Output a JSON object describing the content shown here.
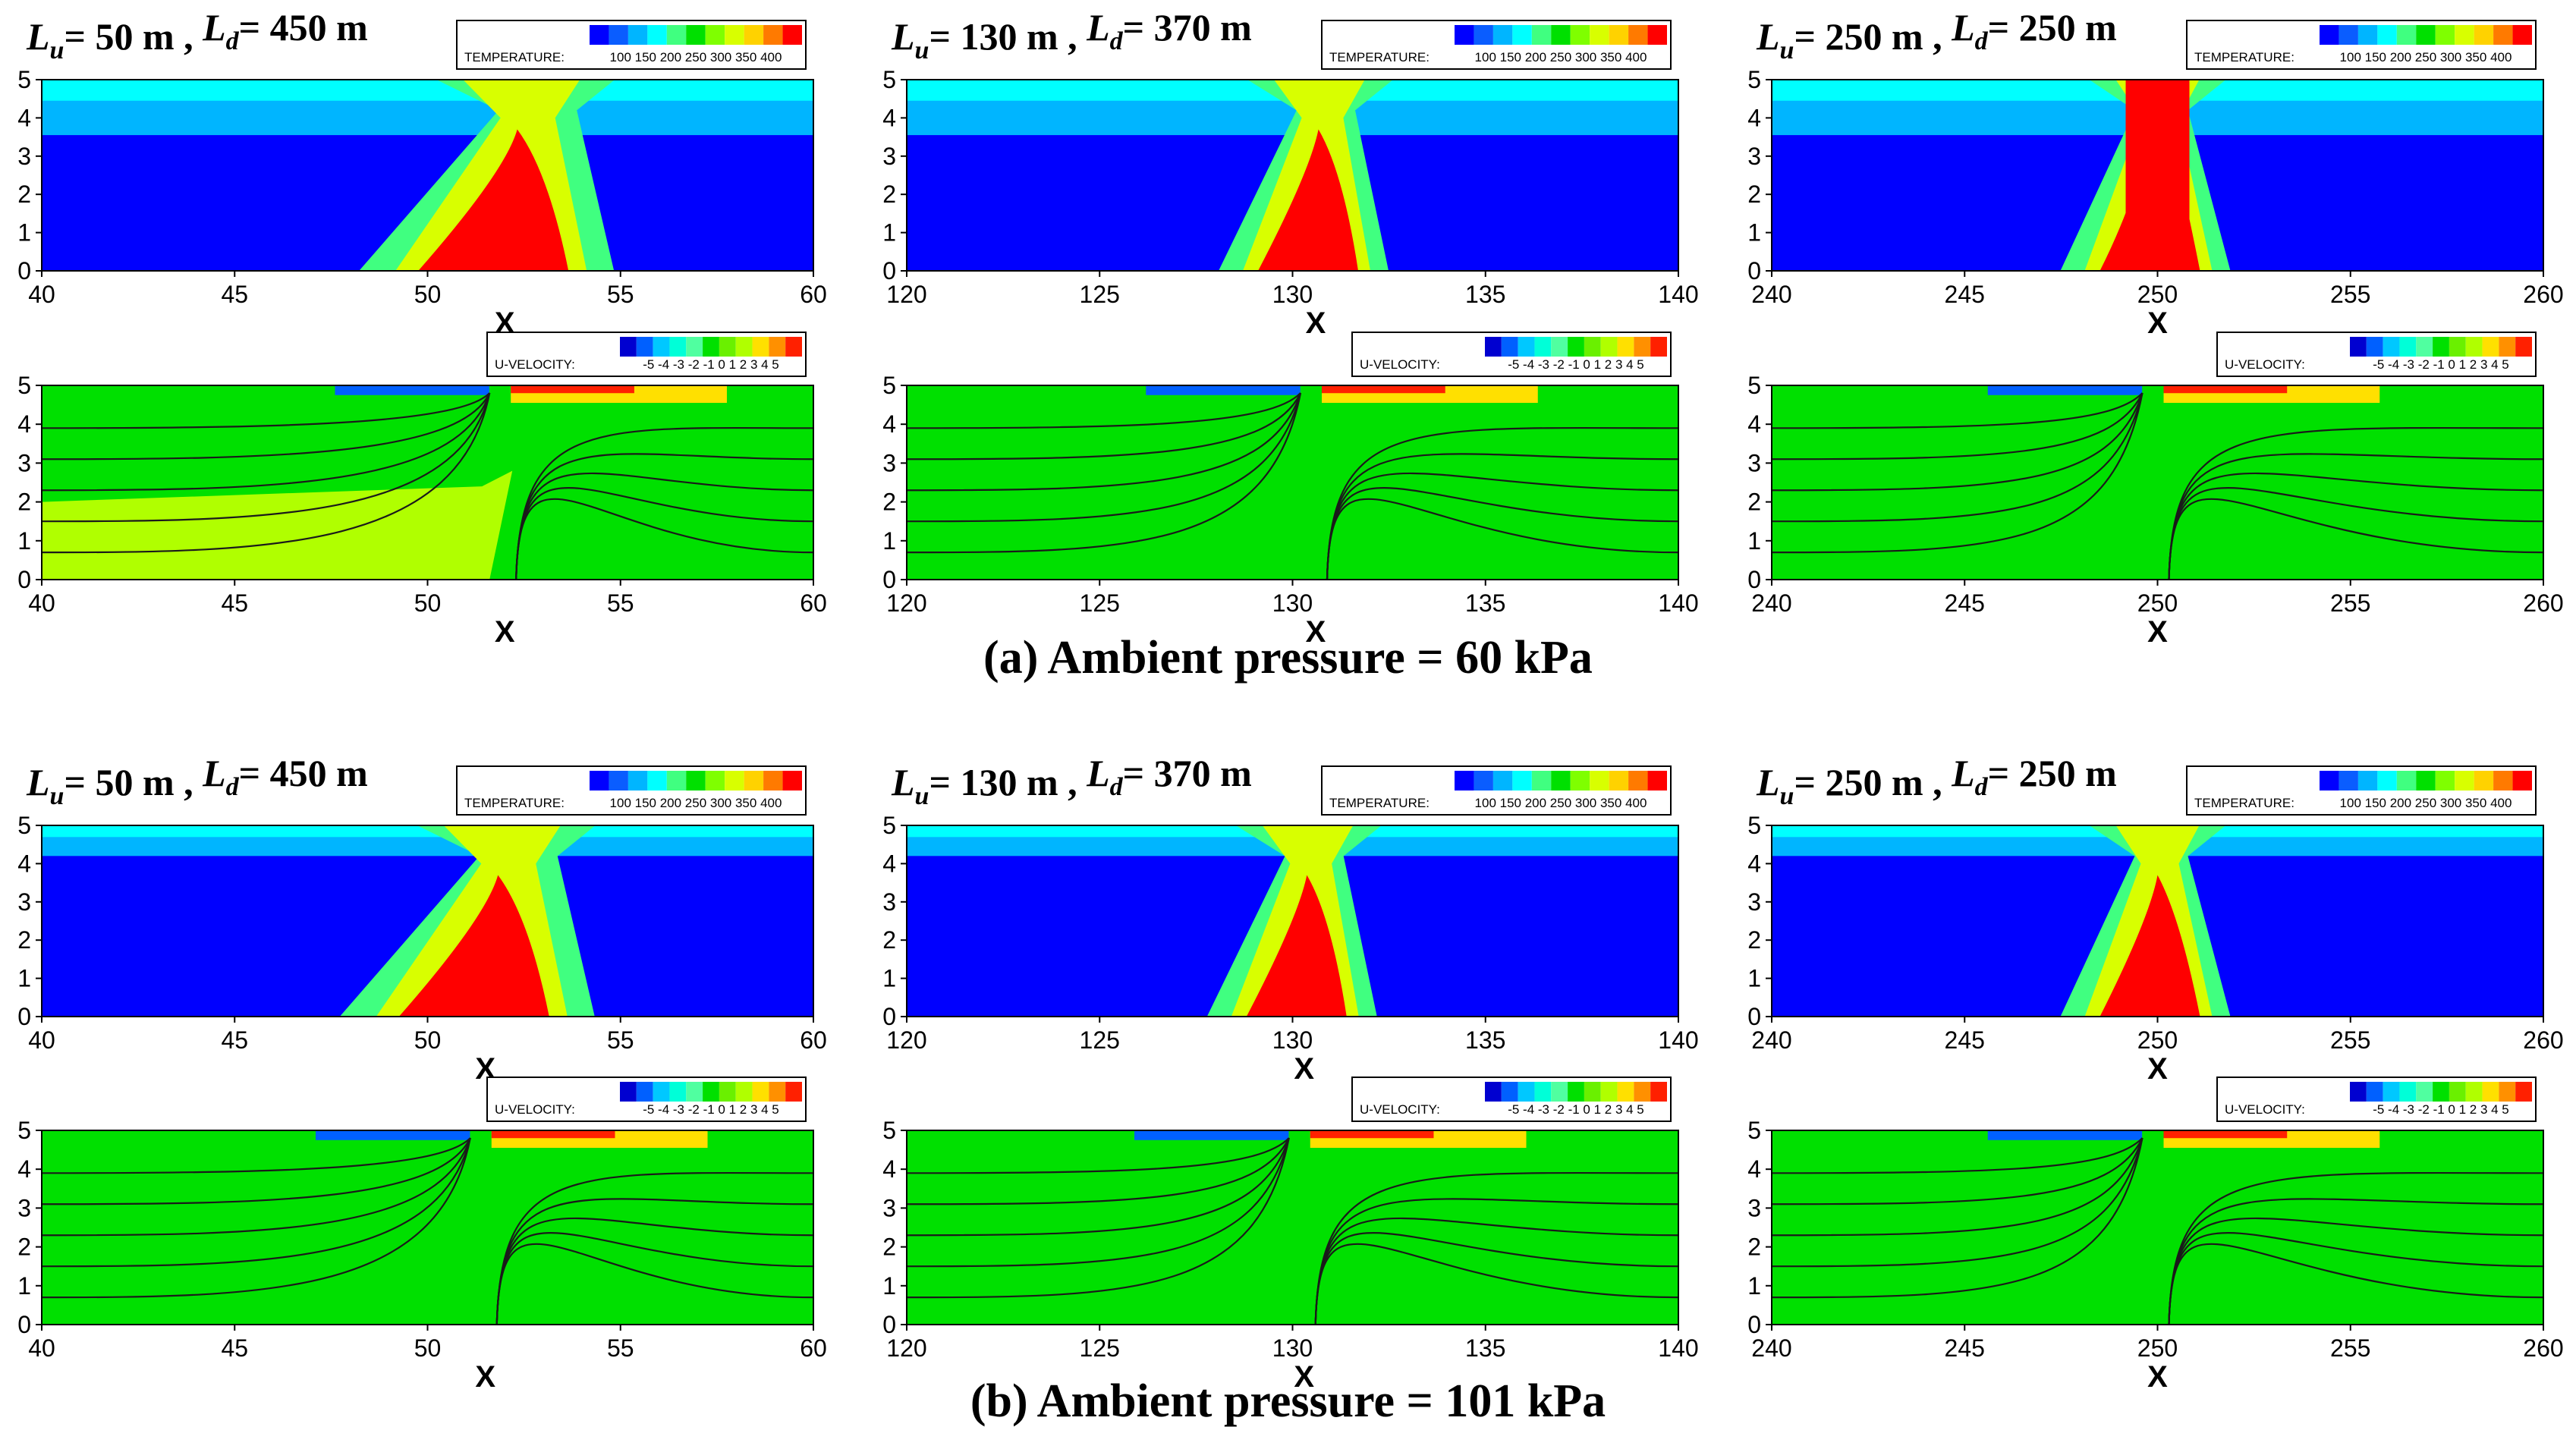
{
  "chart_data": {
    "type": "heatmap",
    "colors": {
      "temperature": [
        "#0000ff",
        "#0a5dff",
        "#00b5ff",
        "#00ffff",
        "#40ff80",
        "#00e000",
        "#7fff00",
        "#d8ff00",
        "#ffd200",
        "#ff7a00",
        "#ff0000"
      ],
      "velocity": [
        "#0000d0",
        "#0060ff",
        "#00c8ff",
        "#00ffd8",
        "#50ffa0",
        "#00e000",
        "#6af000",
        "#b0ff00",
        "#ffe000",
        "#ff9000",
        "#ff2000"
      ]
    },
    "rows": [
      {
        "label": "(a) Ambient pressure = 60 kPa",
        "cases": [
          {
            "lu": "50 m",
            "ld": "450 m",
            "fire_x": 52,
            "xlim": [
              40,
              60
            ],
            "xticks": [
              "40",
              "45",
              "50",
              "55",
              "60"
            ],
            "temp_legend": {
              "title": "TEMPERATURE:",
              "ticks": "100 150 200 250 300 350 400"
            },
            "vel_legend": {
              "title": "U-VELOCITY:",
              "ticks": "-5 -4 -3 -2 -1 0 1 2 3 4 5"
            }
          },
          {
            "lu": "130 m",
            "ld": "370 m",
            "fire_x": 130.6,
            "xlim": [
              120,
              140
            ],
            "xticks": [
              "120",
              "125",
              "130",
              "135",
              "140"
            ],
            "temp_legend": {
              "title": "TEMPERATURE:",
              "ticks": "100 150 200 250 300 350 400"
            },
            "vel_legend": {
              "title": "U-VELOCITY:",
              "ticks": "-5 -4 -3 -2 -1 0 1 2 3 4 5"
            }
          },
          {
            "lu": "250 m",
            "ld": "250 m",
            "fire_x": 250,
            "xlim": [
              240,
              260
            ],
            "xticks": [
              "240",
              "245",
              "250",
              "255",
              "260"
            ],
            "temp_legend": {
              "title": "TEMPERATURE:",
              "ticks": "100 150 200 250 300 350 400"
            },
            "vel_legend": {
              "title": "U-VELOCITY:",
              "ticks": "-5 -4 -3 -2 -1 0 1 2 3 4 5"
            }
          }
        ]
      },
      {
        "label": "(b) Ambient pressure = 101 kPa",
        "cases": [
          {
            "lu": "50 m",
            "ld": "450 m",
            "fire_x": 51.5,
            "xlim": [
              40,
              60
            ],
            "xticks": [
              "40",
              "45",
              "50",
              "55",
              "60"
            ],
            "temp_legend": {
              "title": "TEMPERATURE:",
              "ticks": "100 150 200 250 300 350 400"
            },
            "vel_legend": {
              "title": "U-VELOCITY:",
              "ticks": "-5 -4 -3 -2 -1 0 1 2 3 4 5"
            }
          },
          {
            "lu": "130 m",
            "ld": "370 m",
            "fire_x": 130.3,
            "xlim": [
              120,
              140
            ],
            "xticks": [
              "120",
              "125",
              "130",
              "135",
              "140"
            ],
            "temp_legend": {
              "title": "TEMPERATURE:",
              "ticks": "100 150 200 250 300 350 400"
            },
            "vel_legend": {
              "title": "U-VELOCITY:",
              "ticks": "-5 -4 -3 -2 -1 0 1 2 3 4 5"
            }
          },
          {
            "lu": "250 m",
            "ld": "250 m",
            "fire_x": 250,
            "xlim": [
              240,
              260
            ],
            "xticks": [
              "240",
              "245",
              "250",
              "255",
              "260"
            ],
            "temp_legend": {
              "title": "TEMPERATURE:",
              "ticks": "100 150 200 250 300 350 400"
            },
            "vel_legend": {
              "title": "U-VELOCITY:",
              "ticks": "-5 -4 -3 -2 -1 0 1 2 3 4 5"
            }
          }
        ]
      }
    ],
    "ylim": [
      0,
      5
    ],
    "yticks": [
      "0",
      "1",
      "2",
      "3",
      "4",
      "5"
    ],
    "xlabel": "X",
    "title_prefix_lu": "L",
    "title_sub_lu": "u",
    "title_prefix_ld": "L",
    "title_sub_ld": "d"
  }
}
